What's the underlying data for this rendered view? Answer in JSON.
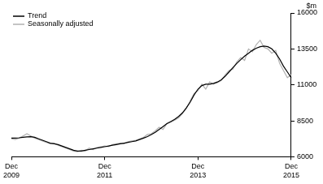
{
  "chart_data": {
    "type": "line",
    "ylabel": "$m",
    "categories": [
      "Dec 2009",
      null,
      null,
      null,
      null,
      null,
      null,
      null,
      null,
      null,
      null,
      null,
      null,
      null,
      null,
      null,
      null,
      null,
      null,
      null,
      null,
      null,
      null,
      null,
      "Dec 2011",
      null,
      null,
      null,
      null,
      null,
      null,
      null,
      null,
      null,
      null,
      null,
      null,
      null,
      null,
      null,
      null,
      null,
      null,
      null,
      null,
      null,
      null,
      null,
      "Dec 2013",
      null,
      null,
      null,
      null,
      null,
      null,
      null,
      null,
      null,
      null,
      null,
      null,
      null,
      null,
      null,
      null,
      null,
      null,
      null,
      null,
      null,
      null,
      null,
      "Dec 2015"
    ],
    "series": [
      {
        "name": "Trend",
        "color": "#000000",
        "values": [
          7300,
          7300,
          7320,
          7350,
          7380,
          7400,
          7350,
          7250,
          7150,
          7050,
          6950,
          6900,
          6850,
          6750,
          6650,
          6550,
          6450,
          6400,
          6400,
          6450,
          6500,
          6550,
          6600,
          6650,
          6700,
          6750,
          6800,
          6850,
          6900,
          6950,
          7000,
          7050,
          7100,
          7200,
          7300,
          7400,
          7550,
          7700,
          7900,
          8100,
          8300,
          8450,
          8600,
          8800,
          9050,
          9400,
          9800,
          10300,
          10700,
          10950,
          11050,
          11050,
          11100,
          11200,
          11350,
          11600,
          11900,
          12200,
          12500,
          12750,
          13000,
          13200,
          13400,
          13550,
          13650,
          13700,
          13650,
          13500,
          13200,
          12800,
          12300,
          11900,
          11500
        ]
      },
      {
        "name": "Seasonally adjusted",
        "color": "#b0b0b0",
        "values": [
          7250,
          7200,
          7300,
          7450,
          7600,
          7450,
          7300,
          7200,
          7100,
          7000,
          6900,
          6950,
          6800,
          6700,
          6600,
          6500,
          6400,
          6350,
          6450,
          6400,
          6600,
          6500,
          6650,
          6700,
          6750,
          6700,
          6850,
          6900,
          6950,
          6900,
          7050,
          7100,
          7150,
          7250,
          7350,
          7550,
          7600,
          7800,
          8050,
          7900,
          8300,
          8400,
          8550,
          8700,
          9000,
          9350,
          9900,
          10400,
          10600,
          11050,
          10700,
          11200,
          11050,
          11150,
          11300,
          11700,
          12000,
          12100,
          12600,
          12900,
          12700,
          13500,
          13300,
          13800,
          14100,
          13600,
          13500,
          13200,
          13400,
          12500,
          12000,
          11500,
          11700
        ]
      }
    ],
    "ylim": [
      6000,
      16000
    ],
    "yticks": [
      6000,
      8500,
      11000,
      13500,
      16000
    ],
    "grid": false,
    "legend": "upper left"
  }
}
